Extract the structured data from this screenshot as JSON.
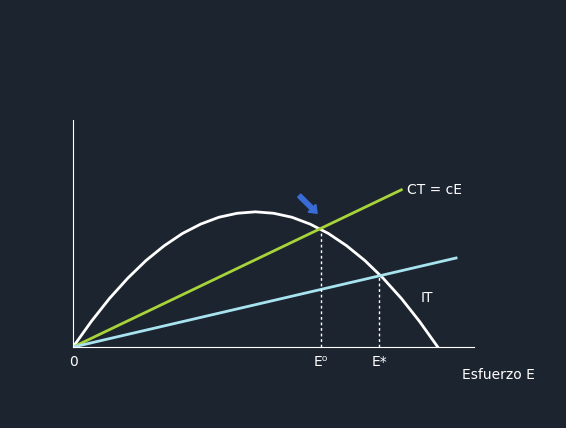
{
  "chart_data": {
    "type": "line",
    "xlabel": "Esfuerzo E",
    "xlim": [
      0,
      11
    ],
    "ylim": [
      0,
      6.3
    ],
    "xticks": [
      {
        "value": 0,
        "label": "0"
      },
      {
        "value": 6.8,
        "label": "E⁰"
      },
      {
        "value": 8.4,
        "label": "E*"
      }
    ],
    "yticks": [],
    "tick_labels": "x",
    "grid": false,
    "series": [
      {
        "name": "IT",
        "color": "#ffffff",
        "x": [
          0,
          0.5,
          1,
          1.5,
          2,
          2.5,
          3,
          3.5,
          4,
          4.5,
          5,
          5.5,
          6,
          6.5,
          7,
          7.5,
          8,
          8.5,
          9,
          9.5,
          10
        ],
        "values": [
          0,
          0.71,
          1.35,
          1.91,
          2.4,
          2.81,
          3.15,
          3.41,
          3.6,
          3.71,
          3.75,
          3.71,
          3.6,
          3.41,
          3.15,
          2.81,
          2.4,
          1.91,
          1.35,
          0.71,
          0
        ]
      },
      {
        "name": "CT = cE",
        "color": "#a8d43a",
        "x": [
          0,
          9
        ],
        "values": [
          0,
          4.36
        ]
      },
      {
        "color": "#a8e4f0",
        "x": [
          0,
          10.5
        ],
        "values": [
          0,
          2.47
        ]
      }
    ]
  }
}
